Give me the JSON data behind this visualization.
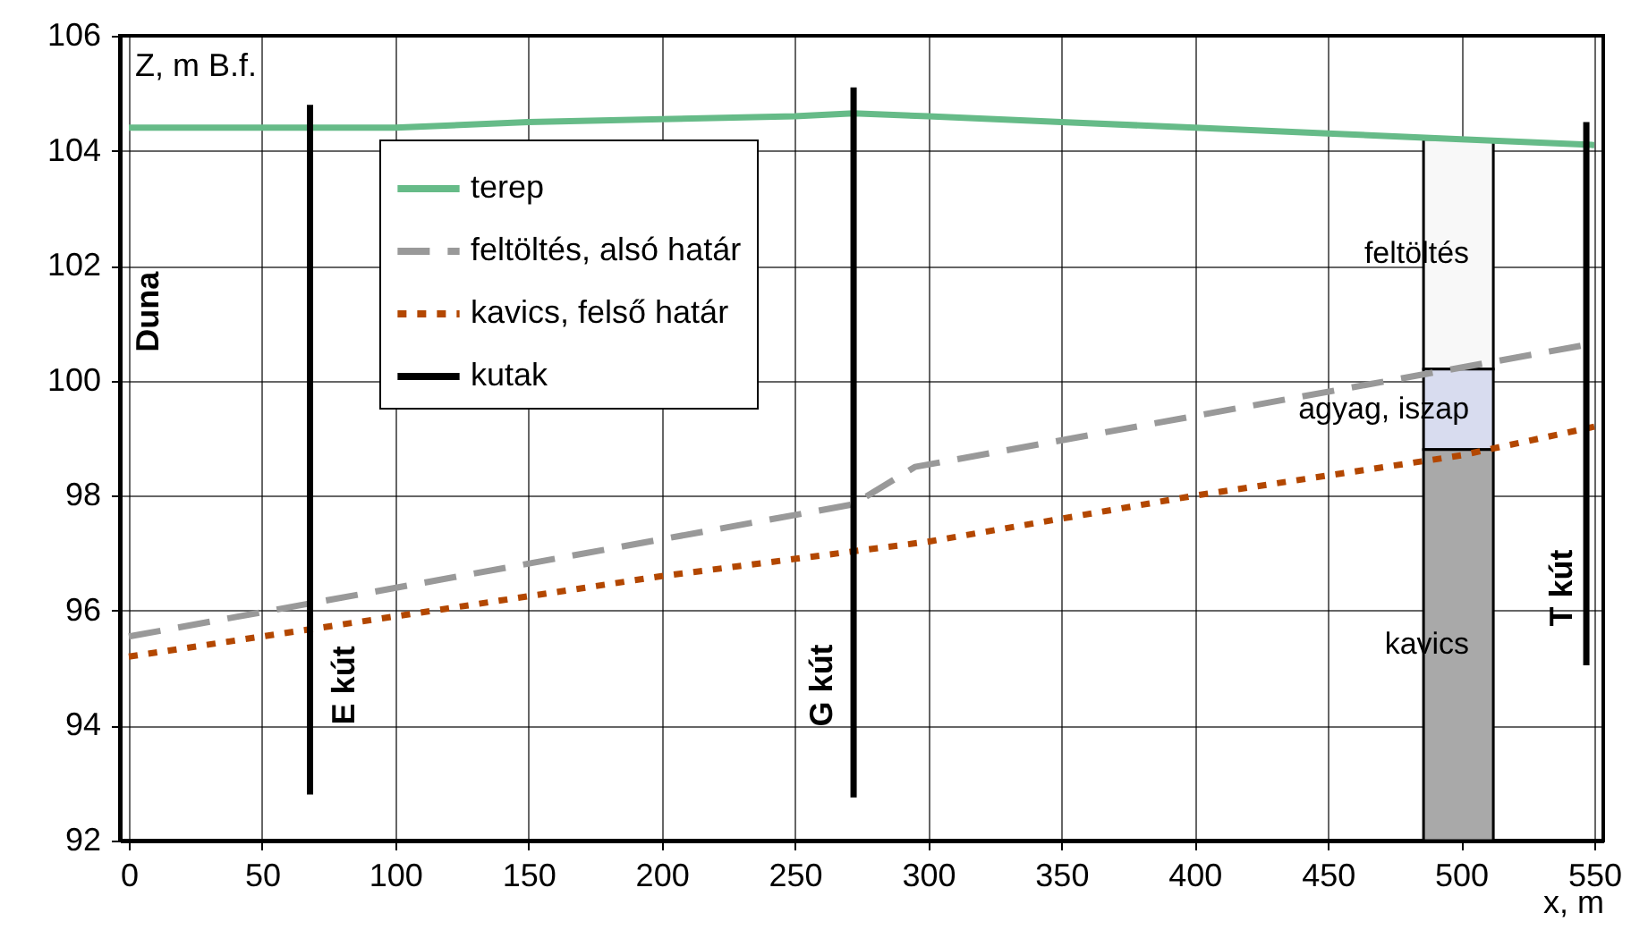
{
  "chart_data": {
    "type": "line",
    "xlabel": "x, m",
    "ylabel": "Z, m B.f.",
    "xlim": [
      0,
      550
    ],
    "xticks": [
      0,
      50,
      100,
      150,
      200,
      250,
      300,
      350,
      400,
      450,
      500,
      550
    ],
    "ylim": [
      92,
      106
    ],
    "yticks": [
      92,
      94,
      96,
      98,
      100,
      102,
      104,
      106
    ],
    "grid": true,
    "legend": "top left",
    "series": [
      {
        "name": "terep",
        "color": "#66bb88",
        "line_style": "solid",
        "x": [
          0,
          50,
          100,
          150,
          200,
          250,
          272,
          300,
          350,
          400,
          450,
          500,
          550
        ],
        "values": [
          104.4,
          104.4,
          104.4,
          104.5,
          104.55,
          104.6,
          104.65,
          104.6,
          104.5,
          104.4,
          104.3,
          104.2,
          104.1
        ]
      },
      {
        "name": "feltöltés, alsó határ",
        "color": "#999999",
        "line_style": "dashed",
        "x": [
          0,
          272,
          295,
          550
        ],
        "values": [
          95.55,
          97.85,
          98.5,
          100.65
        ]
      },
      {
        "name": "kavics, felső határ",
        "color": "#b34700",
        "line_style": "dotted",
        "x": [
          0,
          100,
          200,
          300,
          400,
          500,
          550
        ],
        "values": [
          95.2,
          95.9,
          96.6,
          97.2,
          98.0,
          98.7,
          99.2
        ]
      },
      {
        "name": "kutak",
        "color": "#000000",
        "line_style": "solid",
        "x": [
          68,
          68,
          null,
          272,
          272,
          null,
          547,
          547
        ],
        "values": [
          92.8,
          104.8,
          null,
          92.75,
          105.1,
          null,
          95.05,
          104.5
        ]
      },
      {
        "name": "feltöltés",
        "type": "bar",
        "color": "#f8f8f8",
        "x": [
          499
        ],
        "base": [
          100.2
        ],
        "values": [
          4.0
        ]
      },
      {
        "name": "agyag, iszap",
        "type": "bar",
        "color": "#d8dcef",
        "x": [
          499
        ],
        "base": [
          98.8
        ],
        "values": [
          1.4
        ]
      },
      {
        "name": "kavics",
        "type": "bar",
        "color": "#a9a9a9",
        "x": [
          499
        ],
        "base": [
          92
        ],
        "values": [
          6.8
        ]
      }
    ],
    "annotations": [
      "Duna",
      "E kút",
      "G kút",
      "T kút"
    ]
  }
}
